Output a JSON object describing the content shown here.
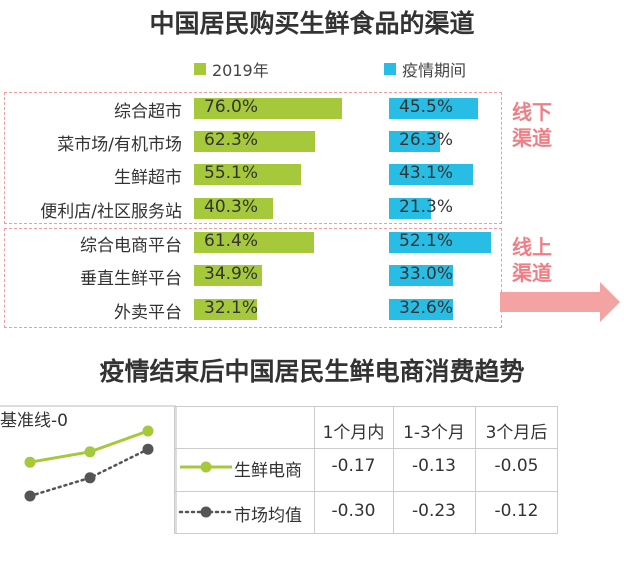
{
  "title": "中国居民购买生鲜食品的渠道",
  "legend": [
    {
      "name": "2019年",
      "color": "#a5c93b"
    },
    {
      "name": "疫情期间",
      "color": "#27bde5"
    }
  ],
  "chart_data": [
    {
      "type": "bar",
      "title": "中国居民购买生鲜食品的渠道",
      "categories": [
        "综合超市",
        "菜市场/有机市场",
        "生鲜超市",
        "便利店/社区服务站",
        "综合电商平台",
        "垂直生鲜平台",
        "外卖平台"
      ],
      "series": [
        {
          "name": "2019年",
          "values": [
            76.0,
            62.3,
            55.1,
            40.3,
            61.4,
            34.9,
            32.1
          ],
          "labels": [
            "76.0%",
            "62.3%",
            "55.1%",
            "40.3%",
            "61.4%",
            "34.9%",
            "32.1%"
          ]
        },
        {
          "name": "疫情期间",
          "values": [
            45.5,
            26.3,
            43.1,
            21.3,
            52.1,
            33.0,
            32.6
          ],
          "labels": [
            "45.5%",
            "26.3%",
            "43.1%",
            "21.3%",
            "52.1%",
            "33.0%",
            "32.6%"
          ]
        }
      ],
      "groups": [
        {
          "label": [
            "线下",
            "渠道"
          ],
          "rows": [
            0,
            1,
            2,
            3
          ]
        },
        {
          "label": [
            "线上",
            "渠道"
          ],
          "rows": [
            4,
            5,
            6
          ]
        }
      ]
    },
    {
      "type": "line",
      "title": "疫情结束后中国居民生鲜电商消费趋势",
      "baseline_label": "基准线-0",
      "columns": [
        "1个月内",
        "1-3个月",
        "3个月后"
      ],
      "series": [
        {
          "name": "生鲜电商",
          "values": [
            -0.17,
            -0.13,
            -0.05
          ],
          "labels": [
            "-0.17",
            "-0.13",
            "-0.05"
          ],
          "color": "#a5c93b",
          "style": "solid"
        },
        {
          "name": "市场均值",
          "values": [
            -0.3,
            -0.23,
            -0.12
          ],
          "labels": [
            "-0.30",
            "-0.23",
            "-0.12"
          ],
          "color": "#555555",
          "style": "dotted"
        }
      ]
    }
  ]
}
